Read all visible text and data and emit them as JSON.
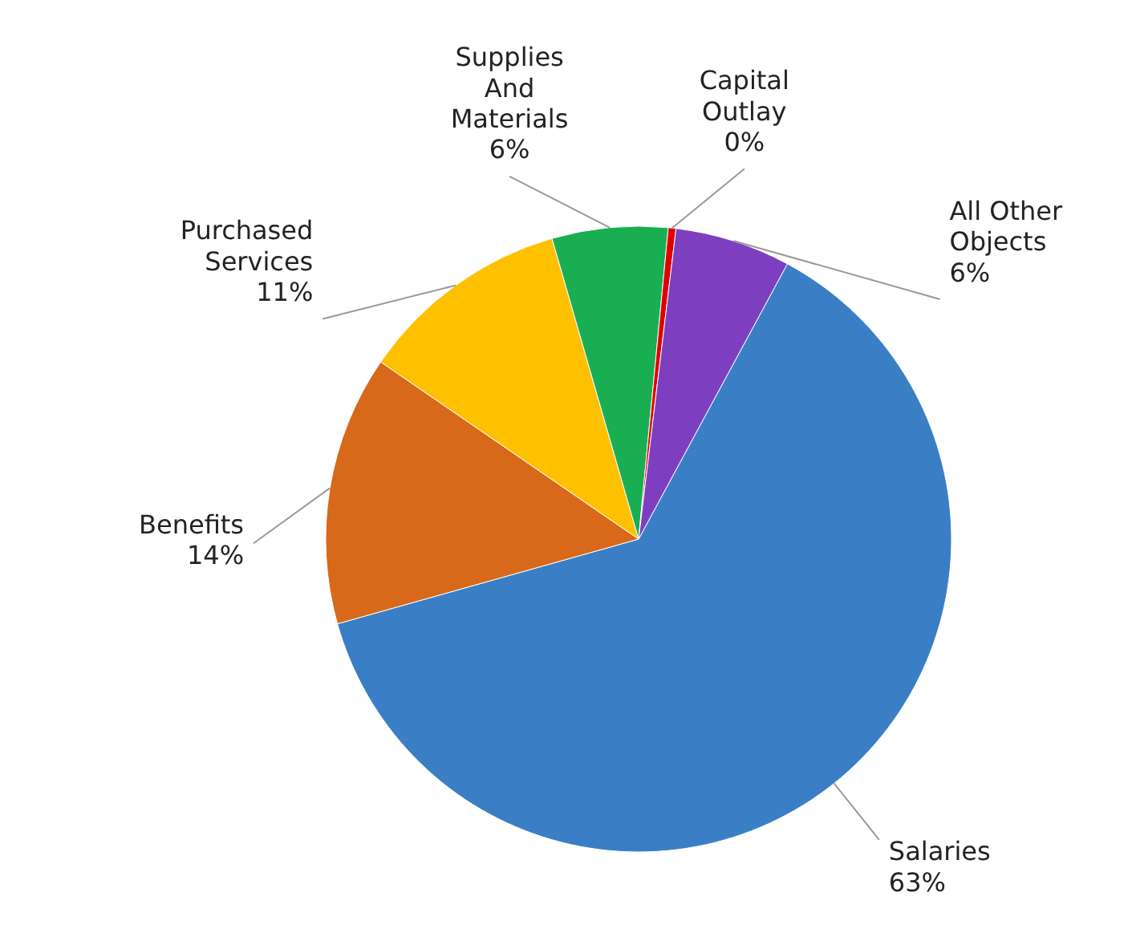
{
  "chart_data": {
    "type": "pie",
    "categories": [
      "Salaries",
      "Benefits",
      "Purchased Services",
      "Supplies And Materials",
      "Capital Outlay",
      "All Other Objects"
    ],
    "values": [
      63,
      14,
      11,
      6,
      0.4,
      6
    ],
    "value_labels": [
      "63%",
      "14%",
      "11%",
      "6%",
      "0%",
      "6%"
    ],
    "colors": [
      "#3a7fc5",
      "#d8681a",
      "#ffc000",
      "#1aae52",
      "#e00000",
      "#7d3fbf"
    ]
  }
}
